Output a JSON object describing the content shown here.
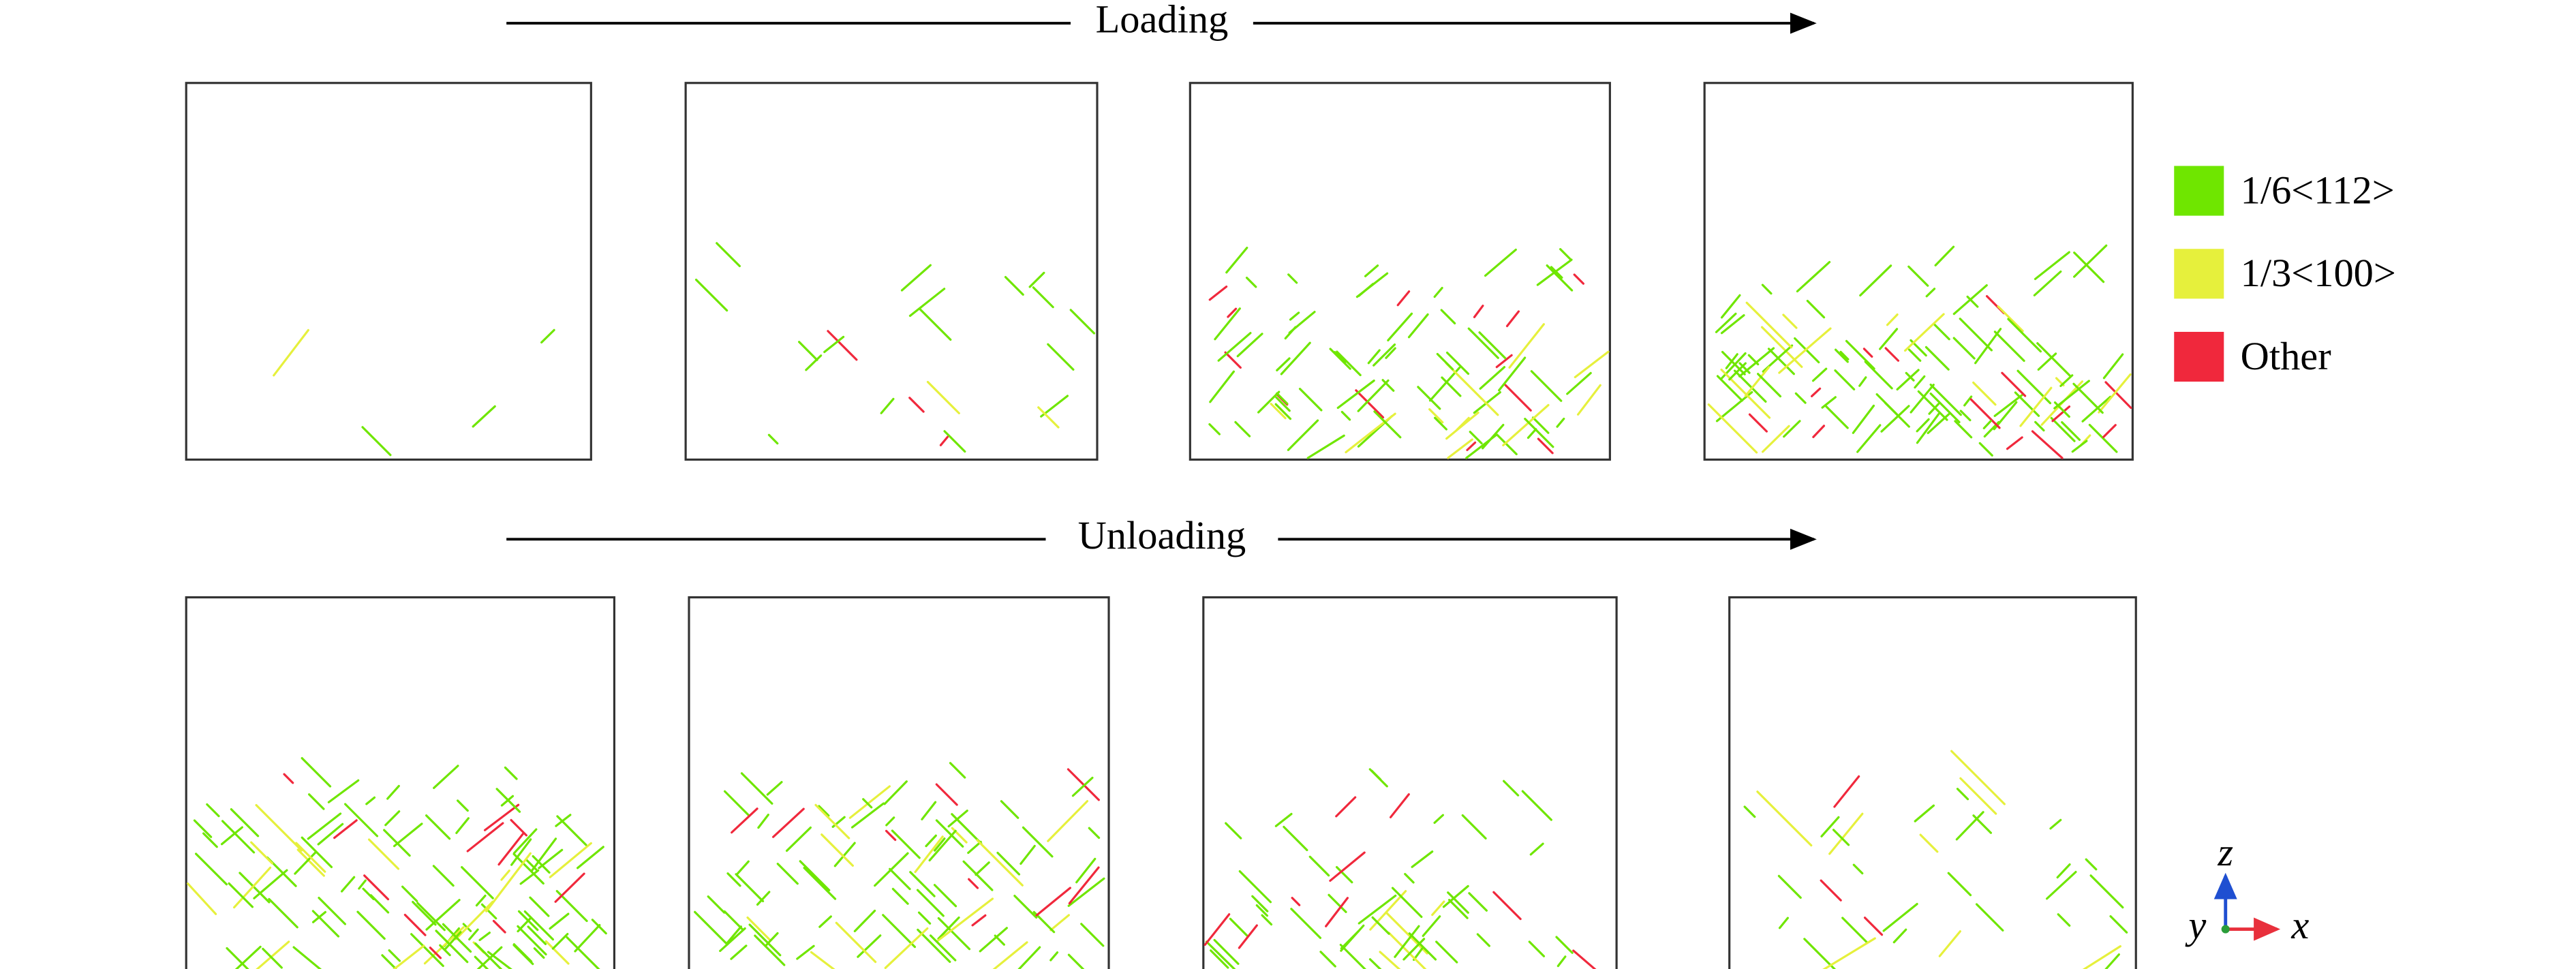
{
  "stages": {
    "loading": "Loading",
    "unloading": "Unloading"
  },
  "legend": [
    {
      "name": "1/6<112>",
      "color": "#6fe600"
    },
    {
      "name": "1/3<100>",
      "color": "#e6f03c"
    },
    {
      "name": "Other",
      "color": "#f0283c"
    }
  ],
  "axes": {
    "z": "z",
    "y": "y",
    "x": "x"
  }
}
